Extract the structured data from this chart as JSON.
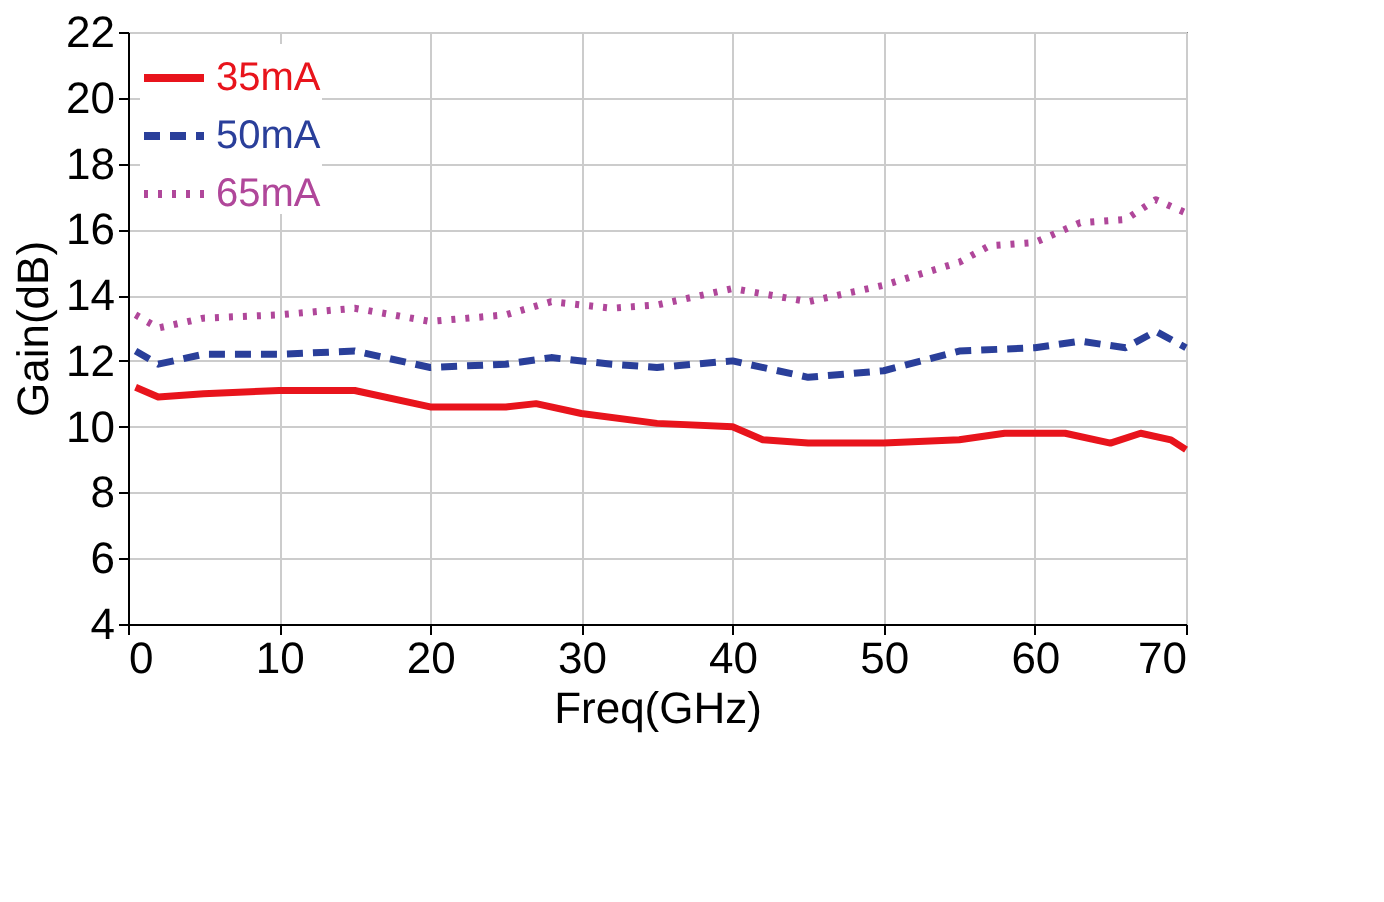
{
  "chart_data": {
    "type": "line",
    "xlabel": "Freq(GHz)",
    "ylabel": "Gain(dB)",
    "xlim": [
      0,
      70
    ],
    "ylim": [
      4,
      22
    ],
    "xticks": [
      0,
      10,
      20,
      30,
      40,
      50,
      60,
      70
    ],
    "yticks": [
      4,
      6,
      8,
      10,
      12,
      14,
      16,
      18,
      20,
      22
    ],
    "grid": true,
    "legend": "top left",
    "series": [
      {
        "name": "35mA",
        "color": "#e8141c",
        "line_style": "solid",
        "x": [
          0.5,
          2,
          5,
          10,
          15,
          20,
          25,
          27,
          30,
          35,
          40,
          42,
          45,
          50,
          55,
          58,
          62,
          65,
          67,
          69,
          70
        ],
        "values": [
          11.2,
          10.9,
          11.0,
          11.1,
          11.1,
          10.6,
          10.6,
          10.7,
          10.4,
          10.1,
          10.0,
          9.6,
          9.5,
          9.5,
          9.6,
          9.8,
          9.8,
          9.5,
          9.8,
          9.6,
          9.3
        ]
      },
      {
        "name": "50mA",
        "color": "#2a3f9a",
        "line_style": "dashed",
        "x": [
          0.5,
          2,
          5,
          10,
          15,
          20,
          25,
          28,
          32,
          35,
          40,
          45,
          50,
          55,
          60,
          63,
          66,
          68,
          70
        ],
        "values": [
          12.3,
          11.9,
          12.2,
          12.2,
          12.3,
          11.8,
          11.9,
          12.1,
          11.9,
          11.8,
          12.0,
          11.5,
          11.7,
          12.3,
          12.4,
          12.6,
          12.4,
          12.9,
          12.4
        ]
      },
      {
        "name": "65mA",
        "color": "#b0479a",
        "line_style": "dotted",
        "x": [
          0.5,
          2,
          5,
          10,
          15,
          20,
          25,
          28,
          32,
          35,
          40,
          45,
          48,
          50,
          55,
          57,
          60,
          63,
          66,
          68,
          70
        ],
        "values": [
          13.4,
          13.0,
          13.3,
          13.4,
          13.6,
          13.2,
          13.4,
          13.8,
          13.6,
          13.7,
          14.2,
          13.8,
          14.1,
          14.3,
          15.0,
          15.5,
          15.6,
          16.2,
          16.3,
          16.9,
          16.5
        ]
      }
    ]
  }
}
